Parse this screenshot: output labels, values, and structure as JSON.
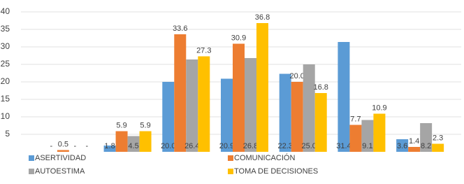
{
  "chart_data": {
    "type": "bar",
    "categories": [
      null,
      null,
      null,
      null,
      null,
      null,
      null
    ],
    "series": [
      {
        "name": "ASERTIVIDAD",
        "color": "#5b9bd5",
        "values": [
          0,
          1.8,
          20.0,
          20.9,
          22.3,
          31.4,
          3.6
        ],
        "value_labels": [
          "-",
          "1.8",
          "20.0",
          "20.9",
          "22.3",
          "31.4",
          "3.6"
        ]
      },
      {
        "name": "COMUNICACIÓN",
        "color": "#ed7d31",
        "values": [
          0.5,
          5.9,
          33.6,
          30.9,
          20.0,
          7.7,
          1.4
        ],
        "value_labels": [
          "0.5",
          "5.9",
          "33.6",
          "30.9",
          "20.0",
          "7.7",
          "1.4"
        ]
      },
      {
        "name": "AUTOESTIMA",
        "color": "#a5a5a5",
        "values": [
          0,
          4.5,
          26.4,
          26.8,
          25.0,
          9.1,
          8.2
        ],
        "value_labels": [
          "-",
          "4.5",
          "26.4",
          "26.8",
          "25.0",
          "9.1",
          "8.2"
        ]
      },
      {
        "name": "TOMA DE DECISIONES",
        "color": "#ffc000",
        "values": [
          0,
          5.9,
          27.3,
          36.8,
          16.8,
          10.9,
          2.3
        ],
        "value_labels": [
          "-",
          "5.9",
          "27.3",
          "36.8",
          "16.8",
          "10.9",
          "2.3"
        ]
      }
    ],
    "ylim": [
      0,
      40
    ],
    "yticks": [
      5,
      10,
      15,
      20,
      25,
      30,
      35,
      40
    ],
    "grid": true
  }
}
